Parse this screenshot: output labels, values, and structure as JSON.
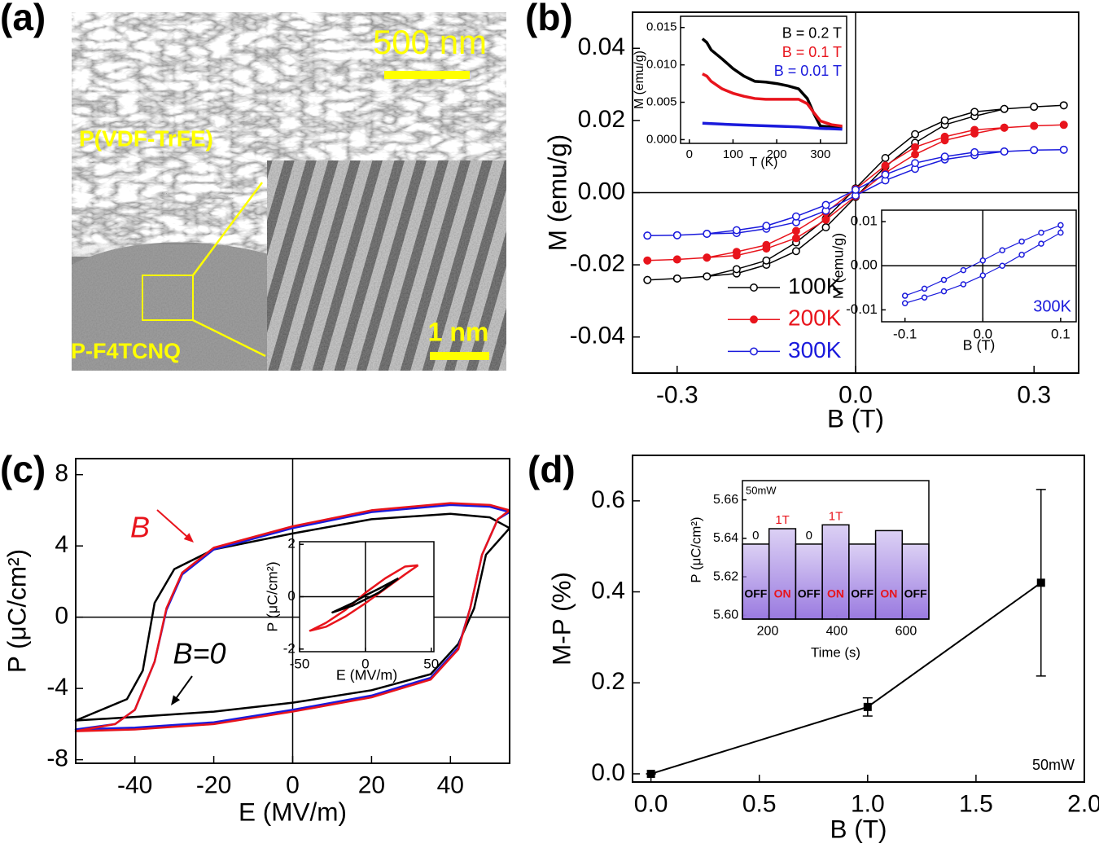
{
  "panel_a": {
    "label": "(a)",
    "scale_bar_large": "500 nm",
    "top_layer": "P(VDF-TrFE)",
    "bottom_layer": "P-F4TCNQ",
    "scale_bar_small": "1 nm"
  },
  "chart_data": [
    {
      "type": "line",
      "label": "(b)",
      "xlabel": "B (T)",
      "ylabel": "M (emu/g)",
      "xlim": [
        -0.375,
        0.375
      ],
      "ylim": [
        -0.05,
        0.05
      ],
      "xticks": [
        -0.3,
        {
          "value": 0,
          "label": "0.0"
        },
        0.3
      ],
      "yticks": [
        -0.04,
        -0.02,
        {
          "value": 0,
          "label": "0.00"
        },
        0.02,
        0.04
      ],
      "zero_lines": true,
      "legend": "lower left",
      "series": [
        {
          "name": "100K",
          "color": "#000000",
          "marker": "open",
          "x": [
            -0.35,
            -0.3,
            -0.25,
            -0.2,
            -0.15,
            -0.1,
            -0.05,
            0,
            0.05,
            0.1,
            0.15,
            0.2,
            0.25,
            0.3,
            0.35,
            0.35,
            0.3,
            0.25,
            0.2,
            0.15,
            0.1,
            0.05,
            0,
            -0.05,
            -0.1,
            -0.15,
            -0.2,
            -0.25,
            -0.3,
            -0.35
          ],
          "values": [
            -0.0242,
            -0.0238,
            -0.0232,
            -0.0224,
            -0.02,
            -0.0162,
            -0.0096,
            -0.0012,
            0.0072,
            0.0138,
            0.0188,
            0.0212,
            0.0232,
            0.0238,
            0.0242,
            0.0242,
            0.0238,
            0.0232,
            0.0224,
            0.02,
            0.0162,
            0.0096,
            0.0012,
            -0.0072,
            -0.0138,
            -0.0188,
            -0.0212,
            -0.0232,
            -0.0238,
            -0.0242
          ]
        },
        {
          "name": "200K",
          "color": "#e8141c",
          "marker": "filled",
          "x": [
            -0.35,
            -0.3,
            -0.25,
            -0.2,
            -0.15,
            -0.1,
            -0.05,
            0,
            0.05,
            0.1,
            0.15,
            0.2,
            0.25,
            0.3,
            0.35,
            0.35,
            0.3,
            0.25,
            0.2,
            0.15,
            0.1,
            0.05,
            0,
            -0.05,
            -0.1,
            -0.15,
            -0.2,
            -0.25,
            -0.3,
            -0.35
          ],
          "values": [
            -0.0188,
            -0.0185,
            -0.018,
            -0.0174,
            -0.0155,
            -0.0126,
            -0.0075,
            -0.001,
            0.0055,
            0.0106,
            0.0145,
            0.0164,
            0.018,
            0.0185,
            0.0188,
            0.0188,
            0.0185,
            0.018,
            0.0174,
            0.0155,
            0.0126,
            0.0075,
            0.001,
            -0.0055,
            -0.0106,
            -0.0145,
            -0.0164,
            -0.018,
            -0.0185,
            -0.0188
          ]
        },
        {
          "name": "300K",
          "color": "#1a1adc",
          "marker": "open",
          "x": [
            -0.35,
            -0.3,
            -0.25,
            -0.2,
            -0.15,
            -0.1,
            -0.05,
            0,
            0.05,
            0.1,
            0.15,
            0.2,
            0.25,
            0.3,
            0.35,
            0.35,
            0.3,
            0.25,
            0.2,
            0.15,
            0.1,
            0.05,
            0,
            -0.05,
            -0.1,
            -0.15,
            -0.2,
            -0.25,
            -0.3,
            -0.35
          ],
          "values": [
            -0.0119,
            -0.0118,
            -0.0114,
            -0.0112,
            -0.01,
            -0.0082,
            -0.005,
            -0.0008,
            0.0034,
            0.0066,
            0.0092,
            0.0104,
            0.0114,
            0.0118,
            0.0119,
            0.0119,
            0.0118,
            0.0114,
            0.0112,
            0.01,
            0.0082,
            0.005,
            0.0008,
            -0.0034,
            -0.0066,
            -0.0092,
            -0.0104,
            -0.0114,
            -0.0118,
            -0.0119
          ]
        }
      ]
    },
    {
      "type": "line",
      "xlabel": "T (K)",
      "ylabel": "M (emu/g)",
      "xlim": [
        -20,
        360
      ],
      "ylim": [
        -0.0005,
        0.0165
      ],
      "xticks": [
        0,
        100,
        200,
        300
      ],
      "yticks": [
        {
          "value": 0,
          "label": "0.000"
        },
        0.005,
        {
          "value": 0.01,
          "label": "0.010"
        },
        0.015
      ],
      "legend": "upper right",
      "series": [
        {
          "name": "B = 0.2 T",
          "color": "#000000",
          "x": [
            30,
            40,
            50,
            75,
            100,
            125,
            150,
            175,
            200,
            225,
            250,
            270,
            285,
            300,
            325,
            350
          ],
          "values": [
            0.0135,
            0.013,
            0.012,
            0.0108,
            0.0095,
            0.0085,
            0.0078,
            0.0077,
            0.0075,
            0.0072,
            0.0068,
            0.0055,
            0.0035,
            0.0018,
            0.0017,
            0.0016
          ]
        },
        {
          "name": "B = 0.1 T",
          "color": "#e8141c",
          "x": [
            30,
            40,
            50,
            75,
            100,
            125,
            150,
            175,
            200,
            225,
            250,
            270,
            285,
            300,
            325,
            350
          ],
          "values": [
            0.0088,
            0.0085,
            0.0078,
            0.0068,
            0.0062,
            0.0058,
            0.0055,
            0.0054,
            0.0054,
            0.0054,
            0.0054,
            0.0048,
            0.0036,
            0.0025,
            0.002,
            0.0018
          ]
        },
        {
          "name": "B = 0.01 T",
          "color": "#1a1adc",
          "x": [
            30,
            100,
            150,
            200,
            250,
            300,
            350
          ],
          "values": [
            0.0022,
            0.002,
            0.0019,
            0.0018,
            0.0017,
            0.0015,
            0.0014
          ]
        }
      ]
    },
    {
      "type": "line",
      "xlabel": "B (T)",
      "ylabel": "M (emu/g)",
      "xlim": [
        -0.13,
        0.12
      ],
      "ylim": [
        -0.0127,
        0.0126
      ],
      "xticks": [
        -0.1,
        {
          "value": 0,
          "label": "0.0"
        },
        0.1
      ],
      "yticks": [
        -0.01,
        {
          "value": 0,
          "label": "0.00"
        },
        0.01
      ],
      "zero_lines": true,
      "legend": "lower right",
      "series": [
        {
          "name": "300K",
          "color": "#1a1adc",
          "marker": "open",
          "x": [
            -0.1,
            -0.075,
            -0.05,
            -0.025,
            0,
            0.025,
            0.05,
            0.075,
            0.1,
            0.1,
            0.075,
            0.05,
            0.025,
            0,
            -0.025,
            -0.05,
            -0.075,
            -0.1
          ],
          "values": [
            -0.0085,
            -0.0072,
            -0.0058,
            -0.0042,
            -0.0022,
            0,
            0.0025,
            0.005,
            0.0075,
            0.0092,
            0.0075,
            0.0055,
            0.0035,
            0.0012,
            -0.001,
            -0.0032,
            -0.0052,
            -0.0068
          ]
        }
      ]
    },
    {
      "type": "line",
      "label": "(c)",
      "xlabel": "E (MV/m)",
      "ylabel": "P (μC/cm²)",
      "xlim": [
        -55,
        55
      ],
      "ylim": [
        -8.2,
        8.9
      ],
      "xticks": [
        -40,
        -20,
        0,
        20,
        40
      ],
      "yticks": [
        -8,
        -4,
        0,
        4,
        8
      ],
      "zero_lines": true,
      "series": [
        {
          "name": "B=0",
          "color": "#000000",
          "x": [
            55,
            50,
            40,
            20,
            0,
            -20,
            -30,
            -35,
            -38,
            -42,
            -55,
            -55,
            -40,
            -20,
            0,
            20,
            35,
            42,
            46,
            49,
            55
          ],
          "values": [
            5.0,
            5.6,
            5.8,
            5.5,
            4.7,
            3.8,
            2.7,
            0.8,
            -3.0,
            -4.6,
            -5.8,
            -5.8,
            -5.6,
            -5.3,
            -4.8,
            -4.1,
            -3.2,
            -1.5,
            0.5,
            3.5,
            5.0
          ]
        },
        {
          "color": "#1a1adc",
          "x": [
            55,
            50,
            40,
            20,
            0,
            -20,
            -28,
            -32,
            -35,
            -40,
            -45,
            -55,
            -55,
            -40,
            -20,
            0,
            20,
            35,
            42,
            45,
            48,
            52,
            55
          ],
          "values": [
            5.9,
            6.2,
            6.3,
            5.9,
            5.0,
            3.8,
            2.4,
            0.4,
            -2.5,
            -5.2,
            -6.0,
            -6.3,
            -6.3,
            -6.2,
            -5.9,
            -5.2,
            -4.4,
            -3.4,
            -1.7,
            0.5,
            3.5,
            5.5,
            5.9
          ]
        },
        {
          "name": "B",
          "color": "#e8141c",
          "x": [
            55,
            50,
            40,
            20,
            0,
            -20,
            -28,
            -32,
            -35,
            -40,
            -45,
            -55,
            -55,
            -40,
            -20,
            0,
            20,
            35,
            42,
            45,
            48,
            52,
            55
          ],
          "values": [
            6.0,
            6.3,
            6.4,
            6.0,
            5.1,
            3.9,
            2.5,
            0.5,
            -2.5,
            -5.2,
            -6.0,
            -6.4,
            -6.4,
            -6.3,
            -6.0,
            -5.3,
            -4.5,
            -3.5,
            -1.8,
            0.5,
            3.5,
            5.5,
            6.0
          ]
        }
      ]
    },
    {
      "type": "line",
      "xlabel": "E (MV/m)",
      "ylabel": "P (μC/cm²)",
      "xlim": [
        -50,
        52
      ],
      "ylim": [
        -2.1,
        2.1
      ],
      "xticks": [
        -50,
        0,
        50
      ],
      "yticks": [
        -2,
        0,
        2
      ],
      "zero_lines": true,
      "series": [
        {
          "color": "#e8141c",
          "x": [
            40,
            30,
            15,
            0,
            -15,
            -30,
            -42,
            -42,
            -30,
            -15,
            0,
            15,
            30,
            40
          ],
          "values": [
            1.2,
            1.15,
            0.7,
            0.15,
            -0.5,
            -1.0,
            -1.3,
            -1.3,
            -1.15,
            -0.75,
            -0.25,
            0.3,
            0.85,
            1.2
          ]
        },
        {
          "color": "#000000",
          "x": [
            25,
            10,
            0,
            -10,
            -25,
            -25,
            -10,
            0,
            10,
            25
          ],
          "values": [
            0.7,
            0.3,
            0.05,
            -0.25,
            -0.6,
            -0.6,
            -0.35,
            -0.1,
            0.15,
            0.7
          ]
        }
      ]
    },
    {
      "type": "line",
      "label": "(d)",
      "xlabel": "B (T)",
      "ylabel": "M-P (%)",
      "note": "50mW",
      "xlim": [
        -0.085,
        2.0
      ],
      "ylim": [
        -0.018,
        0.7
      ],
      "xticks": [
        {
          "value": 0,
          "label": "0.0"
        },
        0.5,
        {
          "value": 1,
          "label": "1.0"
        },
        1.5,
        {
          "value": 2,
          "label": "2.0"
        }
      ],
      "yticks": [
        {
          "value": 0,
          "label": "0.0"
        },
        0.2,
        0.4,
        0.6
      ],
      "series": [
        {
          "color": "#000000",
          "marker": "square",
          "x": [
            0,
            1.0,
            1.8
          ],
          "values": [
            0,
            0.147,
            0.42
          ],
          "errors": [
            0,
            0.02,
            0.205
          ]
        }
      ]
    },
    {
      "type": "bar",
      "xlabel": "Time (s)",
      "ylabel": "P (μC/cm²)",
      "note": "50mW",
      "xlim": [
        127,
        666
      ],
      "ylim": [
        5.598,
        5.67
      ],
      "xticks": [
        200,
        400,
        600
      ],
      "yticks": [
        {
          "value": 5.6,
          "label": "5.60"
        },
        5.62,
        5.64,
        5.66
      ],
      "color": "#9a7ae0",
      "categories": [
        "OFF",
        "ON",
        "OFF",
        "ON",
        "OFF",
        "ON",
        "OFF"
      ],
      "category_colors": [
        "#000000",
        "#e8141c",
        "#000000",
        "#e8141c",
        "#000000",
        "#e8141c",
        "#000000"
      ],
      "values": [
        5.637,
        5.645,
        5.637,
        5.647,
        5.637,
        5.644,
        5.637
      ],
      "top_labels": [
        "0",
        "1T",
        "0",
        "1T",
        null,
        null,
        null
      ]
    }
  ]
}
